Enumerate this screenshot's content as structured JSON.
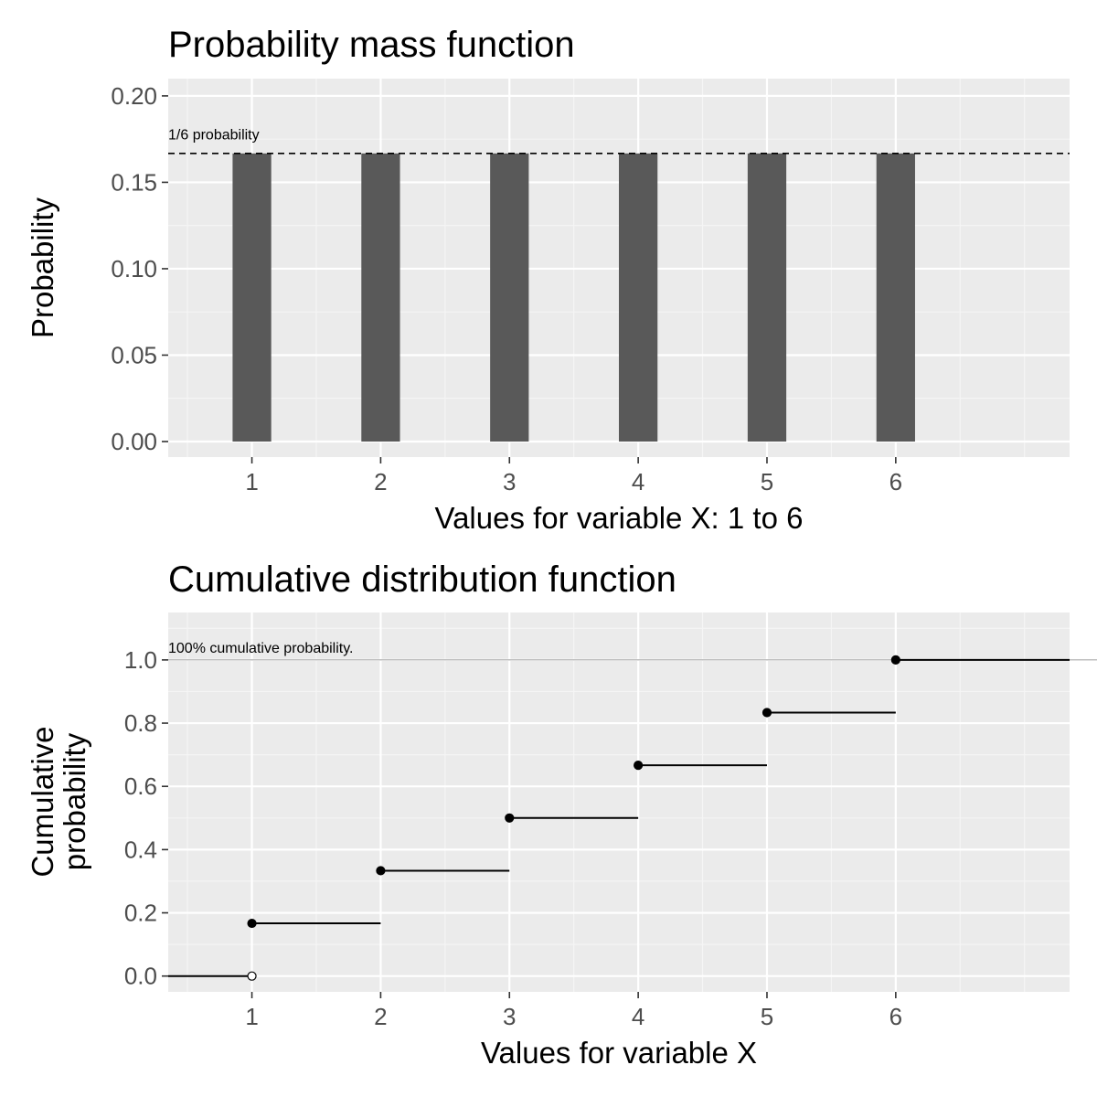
{
  "chart_data": [
    {
      "type": "bar",
      "title": "Probability mass function",
      "xlabel": "Values for variable X: 1 to 6",
      "ylabel": "Probability",
      "categories": [
        "1",
        "2",
        "3",
        "4",
        "5",
        "6"
      ],
      "x": [
        1,
        2,
        3,
        4,
        5,
        6
      ],
      "values": [
        0.1667,
        0.1667,
        0.1667,
        0.1667,
        0.1667,
        0.1667
      ],
      "xlim": [
        0.35,
        7.35
      ],
      "ylim": [
        -0.009,
        0.21
      ],
      "yticks": [
        0,
        0.05,
        0.1,
        0.15,
        0.2
      ],
      "ytick_labels": [
        "0.00",
        "0.05",
        "0.10",
        "0.15",
        "0.20"
      ],
      "reference_line": {
        "y": 0.1667,
        "x_range": [
          0.35,
          7.35
        ],
        "style": "dashed"
      },
      "annotation": {
        "text": "1/6 probability",
        "x": 0.35,
        "y": 0.178
      },
      "bar_color": "#595959",
      "grid": true,
      "legend": "none"
    },
    {
      "type": "line",
      "subtype": "step",
      "title": "Cumulative distribution function",
      "xlabel": "Values for variable X",
      "ylabel_lines": [
        "Cumulative",
        "probability"
      ],
      "categories": [
        "1",
        "2",
        "3",
        "4",
        "5",
        "6"
      ],
      "segments": [
        {
          "x_start": 0.35,
          "x_end": 1,
          "y": 0
        },
        {
          "x_start": 1,
          "x_end": 2,
          "y": 0.1667
        },
        {
          "x_start": 2,
          "x_end": 3,
          "y": 0.3333
        },
        {
          "x_start": 3,
          "x_end": 4,
          "y": 0.5
        },
        {
          "x_start": 4,
          "x_end": 5,
          "y": 0.6667
        },
        {
          "x_start": 5,
          "x_end": 6,
          "y": 0.8333
        },
        {
          "x_start": 6,
          "x_end": 7.35,
          "y": 1.0
        }
      ],
      "points": [
        {
          "x": 1,
          "y": 0,
          "filled": false
        },
        {
          "x": 1,
          "y": 0.1667,
          "filled": true
        },
        {
          "x": 2,
          "y": 0.3333,
          "filled": true
        },
        {
          "x": 3,
          "y": 0.5,
          "filled": true
        },
        {
          "x": 4,
          "y": 0.6667,
          "filled": true
        },
        {
          "x": 5,
          "y": 0.8333,
          "filled": true
        },
        {
          "x": 6,
          "y": 1.0,
          "filled": true
        }
      ],
      "xlim": [
        0.35,
        7.35
      ],
      "ylim": [
        -0.05,
        1.15
      ],
      "yticks": [
        0,
        0.2,
        0.4,
        0.6,
        0.8,
        1.0
      ],
      "ytick_labels": [
        "0.0",
        "0.2",
        "0.4",
        "0.6",
        "0.8",
        "1.0"
      ],
      "reference_line": {
        "y": 1.0,
        "x_range": [
          0.35,
          7.35
        ],
        "style": "solid-thin"
      },
      "annotation": {
        "text": "100% cumulative probability.",
        "x": 0.35,
        "y": 1.04
      },
      "grid": true,
      "legend": "none"
    }
  ],
  "colors": {
    "panel_background": "#ebebeb",
    "grid_major": "#ffffff",
    "grid_minor": "#f5f5f5",
    "tick_label": "#4d4d4d",
    "bar": "#595959",
    "line": "#000000"
  }
}
